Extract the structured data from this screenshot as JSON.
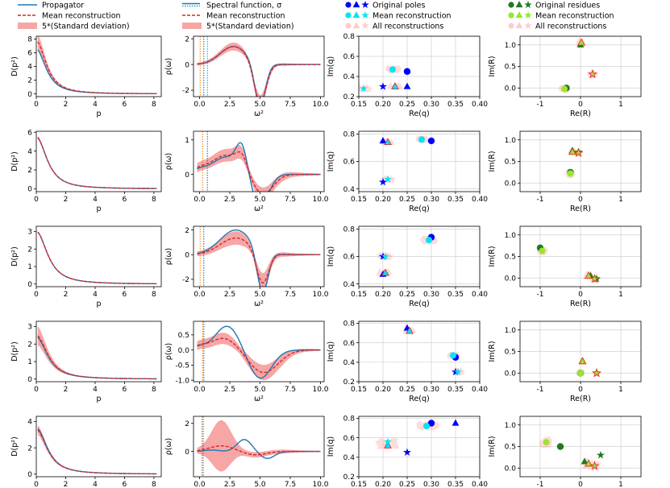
{
  "colors": {
    "propagator": "#1f77b4",
    "mean": "#d62728",
    "band": "#f7a6a6",
    "orange": "#ff7f0e",
    "pole_blue": "#0000ff",
    "pole_cyan": "#00e5ee",
    "residue_green": "#1f7a1f",
    "residue_lime": "#99e62e",
    "grid": "#d0d0d0",
    "recon": "#ff9999"
  },
  "legends": [
    {
      "items": [
        {
          "label": "Propagator",
          "kind": "line",
          "color": "#1f77b4"
        },
        {
          "label": "Mean reconstruction",
          "kind": "dash",
          "color": "#d62728"
        },
        {
          "label": "5*(Standard deviation)",
          "kind": "band",
          "color": "#f7a6a6"
        }
      ]
    },
    {
      "items": [
        {
          "label": "Spectral function, σ",
          "kind": "line+dot",
          "color": "#1f77b4"
        },
        {
          "label": "Mean reconstruction",
          "kind": "dash",
          "color": "#d62728"
        },
        {
          "label": "5*(Standard deviation)",
          "kind": "band",
          "color": "#f7a6a6"
        }
      ]
    },
    {
      "items": [
        {
          "label": "Original poles",
          "kind": "markers",
          "color": "#0000ff"
        },
        {
          "label": "Mean reconstruction",
          "kind": "markers",
          "color": "#00e5ee"
        },
        {
          "label": "All reconstructions",
          "kind": "markers",
          "color": "#ffcccc"
        }
      ]
    },
    {
      "items": [
        {
          "label": "Original residues",
          "kind": "markers",
          "color": "#1f7a1f"
        },
        {
          "label": "Mean reconstruction",
          "kind": "markers",
          "color": "#99e62e"
        },
        {
          "label": "All reconstructions",
          "kind": "markers",
          "color": "#ffcccc"
        }
      ]
    }
  ],
  "chart_data": [
    {
      "type": "line",
      "panel": "propagator",
      "row": 1,
      "xlabel": "p",
      "ylabel": "D(p²)",
      "xlim": [
        0,
        8.5
      ],
      "ylim": [
        -0.4,
        8.4
      ],
      "xticks": [
        0,
        2,
        4,
        6,
        8
      ],
      "yticks": [
        0,
        2,
        4,
        6,
        8
      ],
      "D0": 6.5,
      "decay": 1.3,
      "mean_D0": 7.7,
      "band_width": 0.9
    },
    {
      "type": "line",
      "panel": "spectral",
      "row": 1,
      "xlabel": "ω²",
      "ylabel": "ρ(ω)",
      "xlim": [
        -0.5,
        10.3
      ],
      "ylim": [
        -2.5,
        2.2
      ],
      "xticks": [
        0.0,
        2.5,
        5.0,
        7.5,
        10.0
      ],
      "yticks": [
        -2,
        0,
        2
      ],
      "vlines": [
        0.05,
        0.35,
        0.65
      ],
      "components": [
        {
          "c": 1.4,
          "m": 2.8,
          "s": 1.1
        },
        {
          "c": -3.3,
          "m": 5.0,
          "s": 0.45
        }
      ],
      "mean_components": [
        {
          "c": 1.4,
          "m": 2.8,
          "s": 1.1
        },
        {
          "c": -3.1,
          "m": 5.0,
          "s": 0.5
        }
      ],
      "band": 0.25
    },
    {
      "type": "scatter",
      "panel": "poles",
      "row": 1,
      "xlabel": "Re(q)",
      "ylabel": "Im(q)",
      "xlim": [
        0.15,
        0.4
      ],
      "ylim": [
        0.2,
        0.8
      ],
      "xticks": [
        0.15,
        0.2,
        0.25,
        0.3,
        0.35,
        0.4
      ],
      "yticks": [
        0.2,
        0.4,
        0.6,
        0.8
      ],
      "original": [
        {
          "m": "circle",
          "x": 0.25,
          "y": 0.45
        },
        {
          "m": "triangle",
          "x": 0.25,
          "y": 0.3
        },
        {
          "m": "star",
          "x": 0.2,
          "y": 0.3
        }
      ],
      "mean": [
        {
          "m": "circle",
          "x": 0.22,
          "y": 0.47
        },
        {
          "m": "triangle",
          "x": 0.225,
          "y": 0.3
        },
        {
          "m": "star",
          "x": 0.16,
          "y": 0.28
        }
      ],
      "spread": 0.012
    },
    {
      "type": "scatter",
      "panel": "residues",
      "row": 1,
      "xlabel": "Re(R)",
      "ylabel": "Im(R)",
      "xlim": [
        -1.5,
        1.5
      ],
      "ylim": [
        -0.2,
        1.2
      ],
      "xticks": [
        -1,
        0,
        1
      ],
      "yticks": [
        0.0,
        0.5,
        1.0
      ],
      "original": [
        {
          "m": "circle",
          "x": -0.35,
          "y": 0.0
        },
        {
          "m": "triangle",
          "x": 0.0,
          "y": 1.0
        },
        {
          "m": "star",
          "x": 0.3,
          "y": 0.32
        }
      ],
      "mean": [
        {
          "m": "circle",
          "x": -0.4,
          "y": -0.02
        },
        {
          "m": "triangle",
          "x": 0.02,
          "y": 1.05
        },
        {
          "m": "star",
          "x": 0.3,
          "y": 0.32
        }
      ],
      "spread": 0.06
    },
    {
      "type": "line",
      "panel": "propagator",
      "row": 2,
      "xlabel": "p",
      "ylabel": "D(p²)",
      "xlim": [
        0,
        8.5
      ],
      "ylim": [
        -0.3,
        6.1
      ],
      "xticks": [
        0,
        2,
        4,
        6,
        8
      ],
      "yticks": [
        0,
        2,
        4,
        6
      ],
      "D0": 5.5,
      "decay": 1.1,
      "mean_D0": 5.5,
      "band_width": 0.15
    },
    {
      "type": "line",
      "panel": "spectral",
      "row": 2,
      "xlabel": "ω²",
      "ylabel": "ρ(ω)",
      "xlim": [
        -0.5,
        10.3
      ],
      "ylim": [
        -0.5,
        1.25
      ],
      "xticks": [
        0.0,
        2.5,
        5.0,
        7.5,
        10.0
      ],
      "yticks": [
        0,
        1
      ],
      "vlines": [
        0.25,
        0.65
      ],
      "components": [
        {
          "c": 0.5,
          "m": 2.2,
          "s": 1.2
        },
        {
          "c": 0.7,
          "m": 3.5,
          "s": 0.45
        },
        {
          "c": -0.95,
          "m": 5.0,
          "s": 0.7
        },
        {
          "c": 0.1,
          "m": 0.0,
          "s": 0.5
        }
      ],
      "mean_components": [
        {
          "c": 0.55,
          "m": 2.2,
          "s": 1.3
        },
        {
          "c": 0.35,
          "m": 3.5,
          "s": 0.45
        },
        {
          "c": -0.6,
          "m": 5.2,
          "s": 0.85
        },
        {
          "c": 0.1,
          "m": 0.0,
          "s": 0.5
        }
      ],
      "band": 0.25
    },
    {
      "type": "scatter",
      "panel": "poles",
      "row": 2,
      "xlabel": "Re(q)",
      "ylabel": "Im(q)",
      "xlim": [
        0.15,
        0.4
      ],
      "ylim": [
        0.38,
        0.82
      ],
      "xticks": [
        0.15,
        0.2,
        0.25,
        0.3,
        0.35,
        0.4
      ],
      "yticks": [
        0.4,
        0.6,
        0.8
      ],
      "original": [
        {
          "m": "circle",
          "x": 0.3,
          "y": 0.75
        },
        {
          "m": "triangle",
          "x": 0.2,
          "y": 0.75
        },
        {
          "m": "star",
          "x": 0.2,
          "y": 0.45
        }
      ],
      "mean": [
        {
          "m": "circle",
          "x": 0.28,
          "y": 0.76
        },
        {
          "m": "triangle",
          "x": 0.21,
          "y": 0.74
        },
        {
          "m": "star",
          "x": 0.21,
          "y": 0.47
        }
      ],
      "spread": 0.008
    },
    {
      "type": "scatter",
      "panel": "residues",
      "row": 2,
      "xlabel": "Re(R)",
      "ylabel": "Im(R)",
      "xlim": [
        -1.5,
        1.5
      ],
      "ylim": [
        -0.2,
        1.2
      ],
      "xticks": [
        -1,
        0,
        1
      ],
      "yticks": [
        0.0,
        0.5,
        1.0
      ],
      "original": [
        {
          "m": "circle",
          "x": -0.25,
          "y": 0.25
        },
        {
          "m": "triangle",
          "x": -0.2,
          "y": 0.75
        },
        {
          "m": "star",
          "x": -0.05,
          "y": 0.72
        }
      ],
      "mean": [
        {
          "m": "circle",
          "x": -0.25,
          "y": 0.22
        },
        {
          "m": "triangle",
          "x": -0.2,
          "y": 0.72
        },
        {
          "m": "star",
          "x": -0.05,
          "y": 0.7
        }
      ],
      "spread": 0.05
    },
    {
      "type": "line",
      "panel": "propagator",
      "row": 3,
      "xlabel": "p",
      "ylabel": "D(p²)",
      "xlim": [
        0,
        8.5
      ],
      "ylim": [
        -0.15,
        3.3
      ],
      "xticks": [
        0,
        2,
        4,
        6,
        8
      ],
      "yticks": [
        0,
        1,
        2,
        3
      ],
      "D0": 3.0,
      "decay": 1.0,
      "mean_D0": 3.0,
      "band_width": 0.05
    },
    {
      "type": "line",
      "panel": "spectral",
      "row": 3,
      "xlabel": "ω²",
      "ylabel": "ρ(ω)",
      "xlim": [
        -0.5,
        10.3
      ],
      "ylim": [
        -2.6,
        2.3
      ],
      "xticks": [
        0.0,
        2.5,
        5.0,
        7.5,
        10.0
      ],
      "yticks": [
        -2,
        0,
        2
      ],
      "vlines": [
        0.05,
        0.35
      ],
      "components": [
        {
          "c": 2.0,
          "m": 3.0,
          "s": 1.3
        },
        {
          "c": -3.5,
          "m": 5.2,
          "s": 0.45
        }
      ],
      "mean_components": [
        {
          "c": 1.35,
          "m": 3.0,
          "s": 1.3
        },
        {
          "c": -2.6,
          "m": 5.2,
          "s": 0.5
        }
      ],
      "band": 0.45
    },
    {
      "type": "scatter",
      "panel": "poles",
      "row": 3,
      "xlabel": "Re(q)",
      "ylabel": "Im(q)",
      "xlim": [
        0.15,
        0.4
      ],
      "ylim": [
        0.38,
        0.82
      ],
      "xticks": [
        0.15,
        0.2,
        0.25,
        0.3,
        0.35,
        0.4
      ],
      "yticks": [
        0.4,
        0.6,
        0.8
      ],
      "original": [
        {
          "m": "circle",
          "x": 0.3,
          "y": 0.74
        },
        {
          "m": "triangle",
          "x": 0.2,
          "y": 0.47
        },
        {
          "m": "star",
          "x": 0.2,
          "y": 0.6
        }
      ],
      "mean": [
        {
          "m": "circle",
          "x": 0.295,
          "y": 0.72
        },
        {
          "m": "triangle",
          "x": 0.205,
          "y": 0.48
        },
        {
          "m": "star",
          "x": 0.205,
          "y": 0.6
        }
      ],
      "spread": 0.012
    },
    {
      "type": "scatter",
      "panel": "residues",
      "row": 3,
      "xlabel": "Re(R)",
      "ylabel": "Im(R)",
      "xlim": [
        -1.5,
        1.5
      ],
      "ylim": [
        -0.2,
        1.2
      ],
      "xticks": [
        -1,
        0,
        1
      ],
      "yticks": [
        0.0,
        0.5,
        1.0
      ],
      "original": [
        {
          "m": "circle",
          "x": -1.0,
          "y": 0.7
        },
        {
          "m": "triangle",
          "x": 0.25,
          "y": 0.05
        },
        {
          "m": "star",
          "x": 0.4,
          "y": -0.02
        }
      ],
      "mean": [
        {
          "m": "circle",
          "x": -0.95,
          "y": 0.63
        },
        {
          "m": "triangle",
          "x": 0.2,
          "y": 0.05
        },
        {
          "m": "star",
          "x": 0.35,
          "y": -0.02
        }
      ],
      "spread": 0.06
    },
    {
      "type": "line",
      "panel": "propagator",
      "row": 4,
      "xlabel": "p",
      "ylabel": "D(p²)",
      "xlim": [
        0,
        8.5
      ],
      "ylim": [
        -0.15,
        3.3
      ],
      "xticks": [
        0,
        2,
        4,
        6,
        8
      ],
      "yticks": [
        0,
        1,
        2,
        3
      ],
      "D0": 2.4,
      "decay": 1.0,
      "mean_D0": 2.5,
      "band_width": 0.45
    },
    {
      "type": "line",
      "panel": "spectral",
      "row": 4,
      "xlabel": "ω²",
      "ylabel": "ρ(ω)",
      "xlim": [
        -0.5,
        10.3
      ],
      "ylim": [
        -1.05,
        0.95
      ],
      "xticks": [
        0.0,
        2.5,
        5.0,
        7.5,
        10.0
      ],
      "yticks": [
        -1.0,
        -0.5,
        0.0,
        0.5
      ],
      "vlines": [
        0.25,
        0.35
      ],
      "components": [
        {
          "c": 0.8,
          "m": 2.3,
          "s": 1.0
        },
        {
          "c": -0.95,
          "m": 5.0,
          "s": 0.95
        },
        {
          "c": 0.1,
          "m": 0.0,
          "s": 0.5
        }
      ],
      "mean_components": [
        {
          "c": 0.4,
          "m": 2.0,
          "s": 1.1
        },
        {
          "c": -0.75,
          "m": 5.3,
          "s": 1.2
        },
        {
          "c": 0.1,
          "m": 0.0,
          "s": 0.5
        }
      ],
      "band": 0.3
    },
    {
      "type": "scatter",
      "panel": "poles",
      "row": 4,
      "xlabel": "Re(q)",
      "ylabel": "Im(q)",
      "xlim": [
        0.15,
        0.4
      ],
      "ylim": [
        0.2,
        0.82
      ],
      "xticks": [
        0.15,
        0.2,
        0.25,
        0.3,
        0.35,
        0.4
      ],
      "yticks": [
        0.2,
        0.4,
        0.6,
        0.8
      ],
      "original": [
        {
          "m": "circle",
          "x": 0.35,
          "y": 0.45
        },
        {
          "m": "triangle",
          "x": 0.25,
          "y": 0.75
        },
        {
          "m": "star",
          "x": 0.35,
          "y": 0.3
        }
      ],
      "mean": [
        {
          "m": "circle",
          "x": 0.345,
          "y": 0.47
        },
        {
          "m": "triangle",
          "x": 0.255,
          "y": 0.72
        },
        {
          "m": "star",
          "x": 0.355,
          "y": 0.3
        }
      ],
      "spread": 0.008
    },
    {
      "type": "scatter",
      "panel": "residues",
      "row": 4,
      "xlabel": "Re(R)",
      "ylabel": "Im(R)",
      "xlim": [
        -1.5,
        1.5
      ],
      "ylim": [
        -0.2,
        1.2
      ],
      "xticks": [
        -1,
        0,
        1
      ],
      "yticks": [
        0.0,
        0.5,
        1.0
      ],
      "original": [
        {
          "m": "circle",
          "x": 0.0,
          "y": 0.0
        },
        {
          "m": "triangle",
          "x": 0.05,
          "y": 0.28
        },
        {
          "m": "star",
          "x": 0.4,
          "y": 0.0
        }
      ],
      "mean": [
        {
          "m": "circle",
          "x": 0.0,
          "y": 0.0
        },
        {
          "m": "triangle",
          "x": 0.05,
          "y": 0.27
        },
        {
          "m": "star",
          "x": 0.4,
          "y": 0.0
        }
      ],
      "spread": 0.03
    },
    {
      "type": "line",
      "panel": "propagator",
      "row": 5,
      "xlabel": "p",
      "ylabel": "D(p²)",
      "xlim": [
        0,
        8.5
      ],
      "ylim": [
        -0.2,
        4.4
      ],
      "xticks": [
        0,
        2,
        4,
        6,
        8
      ],
      "yticks": [
        0,
        2,
        4
      ],
      "D0": 3.5,
      "decay": 1.05,
      "mean_D0": 3.4,
      "band_width": 0.3
    },
    {
      "type": "line",
      "panel": "spectral",
      "row": 5,
      "xlabel": "ω²",
      "ylabel": "ρ(ω)",
      "xlim": [
        -0.5,
        10.3
      ],
      "ylim": [
        -1.8,
        2.5
      ],
      "xticks": [
        0.0,
        2.5,
        5.0,
        7.5,
        10.0
      ],
      "yticks": [
        0,
        2
      ],
      "vlines": [
        0.2,
        0.3
      ],
      "components": [
        {
          "c": 0.85,
          "m": 3.7,
          "s": 0.6
        },
        {
          "c": -0.5,
          "m": 5.6,
          "s": 0.6
        },
        {
          "c": 0.1,
          "m": 1.0,
          "s": 0.6
        }
      ],
      "mean_components": [
        {
          "c": 0.4,
          "m": 1.8,
          "s": 1.0
        },
        {
          "c": -0.25,
          "m": 4.6,
          "s": 0.9
        }
      ],
      "band": 0.35,
      "band_peak": 1.6
    },
    {
      "type": "scatter",
      "panel": "poles",
      "row": 5,
      "xlabel": "Re(q)",
      "ylabel": "Im(q)",
      "xlim": [
        0.15,
        0.4
      ],
      "ylim": [
        0.2,
        0.82
      ],
      "xticks": [
        0.15,
        0.2,
        0.25,
        0.3,
        0.35,
        0.4
      ],
      "yticks": [
        0.2,
        0.4,
        0.6,
        0.8
      ],
      "original": [
        {
          "m": "circle",
          "x": 0.3,
          "y": 0.75
        },
        {
          "m": "triangle",
          "x": 0.35,
          "y": 0.75
        },
        {
          "m": "star",
          "x": 0.25,
          "y": 0.45
        }
      ],
      "mean": [
        {
          "m": "circle",
          "x": 0.29,
          "y": 0.72
        },
        {
          "m": "triangle",
          "x": 0.21,
          "y": 0.52
        },
        {
          "m": "star",
          "x": 0.21,
          "y": 0.56
        }
      ],
      "spread": 0.02
    },
    {
      "type": "scatter",
      "panel": "residues",
      "row": 5,
      "xlabel": "Re(R)",
      "ylabel": "Im(R)",
      "xlim": [
        -1.5,
        1.5
      ],
      "ylim": [
        -0.2,
        1.2
      ],
      "xticks": [
        -1,
        0,
        1
      ],
      "yticks": [
        0.0,
        0.5,
        1.0
      ],
      "original": [
        {
          "m": "circle",
          "x": -0.5,
          "y": 0.5
        },
        {
          "m": "triangle",
          "x": 0.1,
          "y": 0.15
        },
        {
          "m": "star",
          "x": 0.5,
          "y": 0.3
        }
      ],
      "mean": [
        {
          "m": "circle",
          "x": -0.85,
          "y": 0.6
        },
        {
          "m": "triangle",
          "x": 0.2,
          "y": 0.1
        },
        {
          "m": "star",
          "x": 0.35,
          "y": 0.05
        }
      ],
      "spread": 0.1
    }
  ]
}
